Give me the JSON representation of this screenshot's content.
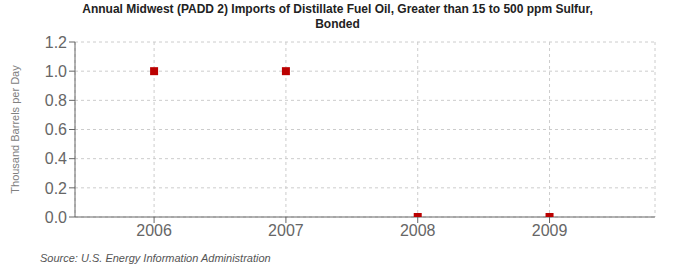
{
  "chart_data": {
    "type": "scatter",
    "title": "Annual Midwest (PADD 2) Imports of Distillate Fuel Oil, Greater than 15 to 500 ppm Sulfur,\nBonded",
    "y_label": "Thousand Barrels per Day",
    "annotations": [
      "Source: U.S. Energy Information Administration"
    ],
    "x": [
      2006,
      2007,
      2008,
      2009
    ],
    "values": [
      1.0,
      1.0,
      0.0,
      0.0
    ],
    "color": "#bb0000",
    "marker": "square",
    "xlim": [
      2005.4,
      2009.8
    ],
    "xticks": [
      2006,
      2007,
      2008,
      2009
    ],
    "ylim": [
      0.0,
      1.2
    ],
    "yticks": [
      {
        "value": 0,
        "label": "0.0"
      },
      0.2,
      0.4,
      0.6,
      0.8,
      {
        "value": 1,
        "label": "1.0"
      },
      1.2
    ],
    "grid": true
  }
}
